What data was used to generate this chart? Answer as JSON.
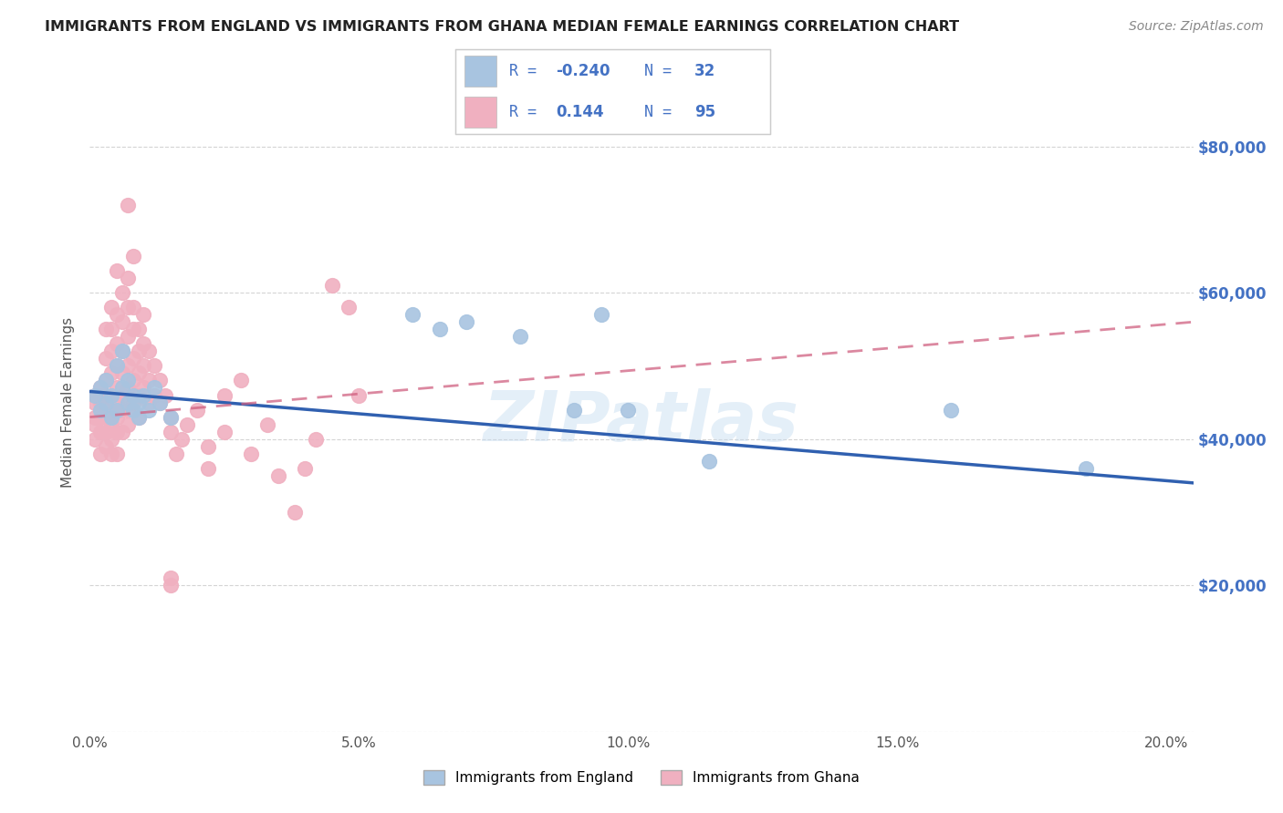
{
  "title": "IMMIGRANTS FROM ENGLAND VS IMMIGRANTS FROM GHANA MEDIAN FEMALE EARNINGS CORRELATION CHART",
  "source": "Source: ZipAtlas.com",
  "ylabel": "Median Female Earnings",
  "xlim": [
    0.0,
    0.205
  ],
  "ylim": [
    0,
    90000
  ],
  "xtick_labels": [
    "0.0%",
    "5.0%",
    "10.0%",
    "15.0%",
    "20.0%"
  ],
  "xtick_vals": [
    0.0,
    0.05,
    0.1,
    0.15,
    0.2
  ],
  "ytick_vals": [
    0,
    20000,
    40000,
    60000,
    80000
  ],
  "ytick_labels": [
    "",
    "$20,000",
    "$40,000",
    "$60,000",
    "$80,000"
  ],
  "england_color": "#a8c4e0",
  "ghana_color": "#f0b0c0",
  "england_line_color": "#3060b0",
  "ghana_line_color": "#d06080",
  "england_scatter": [
    [
      0.001,
      46000
    ],
    [
      0.002,
      44000
    ],
    [
      0.002,
      47000
    ],
    [
      0.003,
      45000
    ],
    [
      0.003,
      48000
    ],
    [
      0.004,
      43000
    ],
    [
      0.004,
      46000
    ],
    [
      0.005,
      50000
    ],
    [
      0.005,
      44000
    ],
    [
      0.006,
      52000
    ],
    [
      0.006,
      47000
    ],
    [
      0.007,
      45000
    ],
    [
      0.007,
      48000
    ],
    [
      0.008,
      44000
    ],
    [
      0.008,
      46000
    ],
    [
      0.009,
      43000
    ],
    [
      0.009,
      45000
    ],
    [
      0.01,
      46000
    ],
    [
      0.011,
      44000
    ],
    [
      0.012,
      47000
    ],
    [
      0.013,
      45000
    ],
    [
      0.015,
      43000
    ],
    [
      0.06,
      57000
    ],
    [
      0.065,
      55000
    ],
    [
      0.07,
      56000
    ],
    [
      0.08,
      54000
    ],
    [
      0.09,
      44000
    ],
    [
      0.095,
      57000
    ],
    [
      0.1,
      44000
    ],
    [
      0.115,
      37000
    ],
    [
      0.16,
      44000
    ],
    [
      0.185,
      36000
    ]
  ],
  "ghana_scatter": [
    [
      0.001,
      46000
    ],
    [
      0.001,
      45000
    ],
    [
      0.001,
      43000
    ],
    [
      0.001,
      42000
    ],
    [
      0.001,
      40000
    ],
    [
      0.002,
      47000
    ],
    [
      0.002,
      46000
    ],
    [
      0.002,
      45000
    ],
    [
      0.002,
      43000
    ],
    [
      0.002,
      41000
    ],
    [
      0.002,
      38000
    ],
    [
      0.003,
      55000
    ],
    [
      0.003,
      51000
    ],
    [
      0.003,
      48000
    ],
    [
      0.003,
      46000
    ],
    [
      0.003,
      44000
    ],
    [
      0.003,
      43000
    ],
    [
      0.003,
      41000
    ],
    [
      0.003,
      39000
    ],
    [
      0.004,
      58000
    ],
    [
      0.004,
      55000
    ],
    [
      0.004,
      52000
    ],
    [
      0.004,
      49000
    ],
    [
      0.004,
      46000
    ],
    [
      0.004,
      44000
    ],
    [
      0.004,
      42000
    ],
    [
      0.004,
      40000
    ],
    [
      0.004,
      38000
    ],
    [
      0.005,
      63000
    ],
    [
      0.005,
      57000
    ],
    [
      0.005,
      53000
    ],
    [
      0.005,
      50000
    ],
    [
      0.005,
      47000
    ],
    [
      0.005,
      45000
    ],
    [
      0.005,
      43000
    ],
    [
      0.005,
      41000
    ],
    [
      0.005,
      38000
    ],
    [
      0.006,
      60000
    ],
    [
      0.006,
      56000
    ],
    [
      0.006,
      52000
    ],
    [
      0.006,
      49000
    ],
    [
      0.006,
      46000
    ],
    [
      0.006,
      44000
    ],
    [
      0.006,
      41000
    ],
    [
      0.007,
      72000
    ],
    [
      0.007,
      62000
    ],
    [
      0.007,
      58000
    ],
    [
      0.007,
      54000
    ],
    [
      0.007,
      50000
    ],
    [
      0.007,
      47000
    ],
    [
      0.007,
      44000
    ],
    [
      0.007,
      42000
    ],
    [
      0.008,
      65000
    ],
    [
      0.008,
      58000
    ],
    [
      0.008,
      55000
    ],
    [
      0.008,
      51000
    ],
    [
      0.008,
      48000
    ],
    [
      0.008,
      45000
    ],
    [
      0.009,
      55000
    ],
    [
      0.009,
      52000
    ],
    [
      0.009,
      49000
    ],
    [
      0.009,
      46000
    ],
    [
      0.009,
      43000
    ],
    [
      0.01,
      57000
    ],
    [
      0.01,
      53000
    ],
    [
      0.01,
      50000
    ],
    [
      0.01,
      47000
    ],
    [
      0.011,
      52000
    ],
    [
      0.011,
      48000
    ],
    [
      0.011,
      45000
    ],
    [
      0.012,
      50000
    ],
    [
      0.012,
      46000
    ],
    [
      0.013,
      48000
    ],
    [
      0.013,
      45000
    ],
    [
      0.014,
      46000
    ],
    [
      0.015,
      43000
    ],
    [
      0.015,
      41000
    ],
    [
      0.016,
      38000
    ],
    [
      0.017,
      40000
    ],
    [
      0.018,
      42000
    ],
    [
      0.02,
      44000
    ],
    [
      0.022,
      36000
    ],
    [
      0.025,
      46000
    ],
    [
      0.028,
      48000
    ],
    [
      0.03,
      38000
    ],
    [
      0.033,
      42000
    ],
    [
      0.035,
      35000
    ],
    [
      0.038,
      30000
    ],
    [
      0.04,
      36000
    ],
    [
      0.042,
      40000
    ],
    [
      0.045,
      61000
    ],
    [
      0.048,
      58000
    ],
    [
      0.05,
      46000
    ],
    [
      0.015,
      21000
    ],
    [
      0.015,
      20000
    ],
    [
      0.022,
      39000
    ],
    [
      0.025,
      41000
    ]
  ],
  "england_line_x": [
    0.0,
    0.205
  ],
  "england_line_y": [
    46500,
    34000
  ],
  "ghana_line_x": [
    0.0,
    0.205
  ],
  "ghana_line_y": [
    43000,
    56000
  ],
  "watermark": "ZIPatlas",
  "background_color": "#ffffff",
  "grid_color": "#d0d0d0",
  "legend_R_color": "#4472c4",
  "legend_text_color": "#333333"
}
